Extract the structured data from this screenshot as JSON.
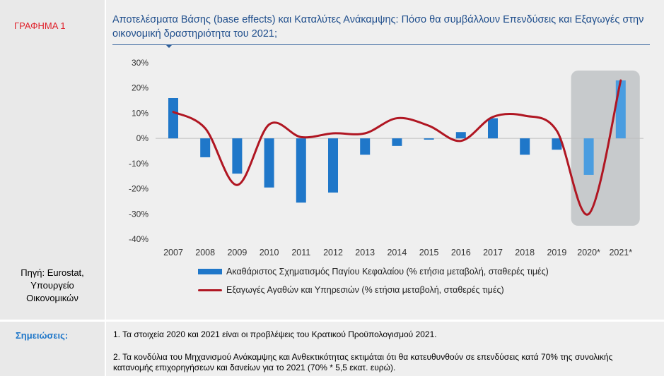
{
  "chart_label": "ΓΡΑΦΗΜΑ 1",
  "source_text": "Πηγή: Eurostat,\nΥπουργείο\nΟικονομικών",
  "notes_label": "Σημειώσεις:",
  "notes": [
    "1. Τα στοιχεία 2020 και 2021 είναι οι προβλέψεις του Κρατικού Προϋπολογισμού 2021.",
    "2. Τα κονδύλια του Μηχανισμού Ανάκαμψης και Ανθεκτικότητας εκτιμάται ότι θα κατευθυνθούν σε επενδύσεις κατά 70% της συνολικής κατανομής επιχορηγήσεων  και δανείων για το 2021 (70%  * 5,5 εκατ. ευρώ)."
  ],
  "colors": {
    "bars": "#1f77c9",
    "bars_forecast": "#4a9de0",
    "line": "#b01622",
    "highlight": "#c7cacc"
  },
  "chart_data": {
    "type": "bar+line",
    "title": "Αποτελέσματα Βάσης (base effects) και Καταλύτες Ανάκαμψης: Πόσο θα συμβάλλουν Επενδύσεις και Εξαγωγές στην οικονομική δραστηριότητα του 2021;",
    "categories": [
      "2007",
      "2008",
      "2009",
      "2010",
      "2011",
      "2012",
      "2013",
      "2014",
      "2015",
      "2016",
      "2017",
      "2018",
      "2019",
      "2020*",
      "2021*"
    ],
    "yticks": [
      "30%",
      "20%",
      "10%",
      "0%",
      "-10%",
      "-20%",
      "-30%",
      "-40%"
    ],
    "ylim": [
      -40,
      30
    ],
    "highlighted_categories": [
      "2020*",
      "2021*"
    ],
    "series": [
      {
        "name": "Ακαθάριστος Σχηματισμός Παγίου Κεφαλαίου (% ετήσια μεταβολή, σταθερές τιμές)",
        "kind": "bar",
        "values": [
          16,
          -7.5,
          -14,
          -19.5,
          -25.5,
          -21.5,
          -6.5,
          -3,
          -0.5,
          2.5,
          8,
          -6.5,
          -4.5,
          -14.5,
          23
        ]
      },
      {
        "name": "Εξαγωγές Αγαθών και Υπηρεσιών (% ετήσια μεταβολή, σταθερές τιμές)",
        "kind": "line",
        "values": [
          10.5,
          4,
          -18.5,
          5.5,
          0.5,
          2,
          2,
          8,
          5,
          -1,
          8.5,
          9,
          3,
          -30,
          23
        ]
      }
    ]
  }
}
